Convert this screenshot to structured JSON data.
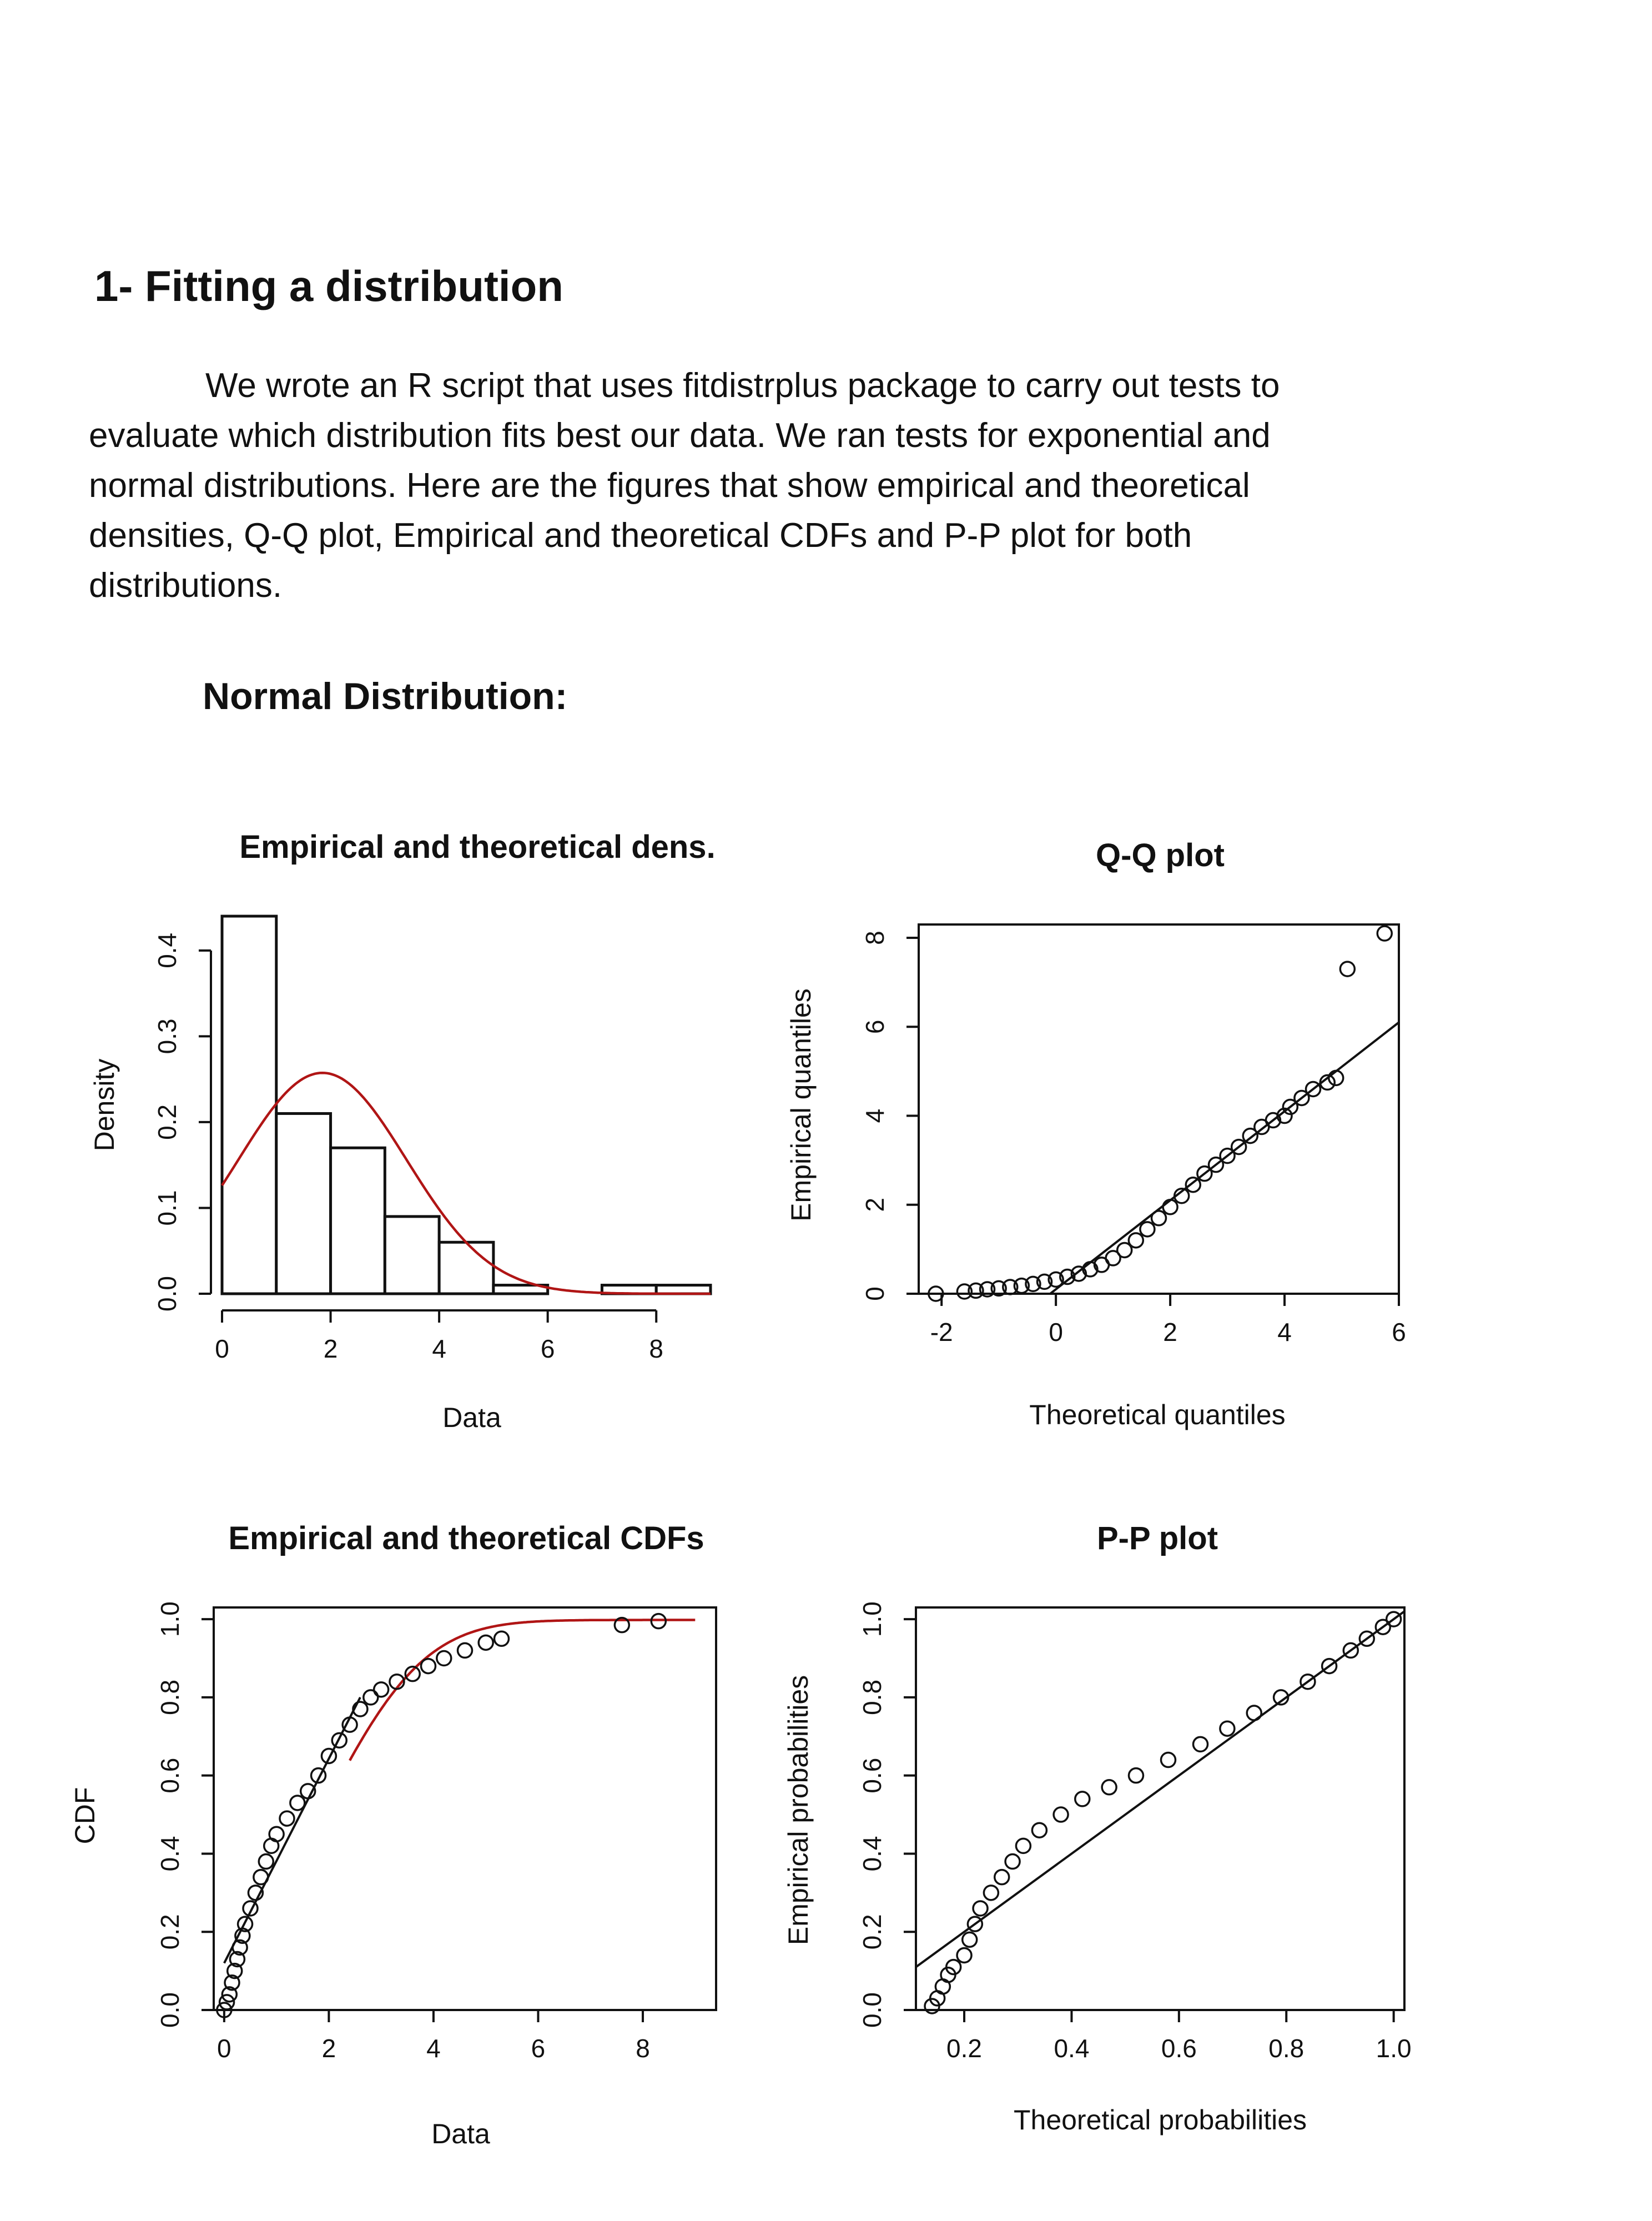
{
  "document": {
    "heading": "1- Fitting a distribution",
    "paragraph": "We wrote an R script that uses fitdistrplus package to carry out tests to evaluate which distribution fits best our data. We ran tests for exponential and normal distributions. Here are the figures that show empirical and theoretical densities, Q-Q plot, Empirical and theoretical CDFs and P-P plot for both distributions.",
    "subheading": "Normal Distribution:"
  },
  "colors": {
    "curve": "#b01515",
    "ink": "#111111"
  },
  "chart_data": [
    {
      "type": "bar",
      "title": "Empirical and theoretical dens.",
      "xlabel": "Data",
      "ylabel": "Density",
      "xlim": [
        0,
        9
      ],
      "ylim": [
        0,
        0.44
      ],
      "xticks": [
        "0",
        "2",
        "4",
        "6",
        "8"
      ],
      "yticks": [
        "0.0",
        "0.1",
        "0.2",
        "0.3",
        "0.4"
      ],
      "bins": [
        {
          "x0": 0,
          "x1": 1,
          "value": 0.44
        },
        {
          "x0": 1,
          "x1": 2,
          "value": 0.21
        },
        {
          "x0": 2,
          "x1": 3,
          "value": 0.17
        },
        {
          "x0": 3,
          "x1": 4,
          "value": 0.09
        },
        {
          "x0": 4,
          "x1": 5,
          "value": 0.06
        },
        {
          "x0": 5,
          "x1": 6,
          "value": 0.01
        },
        {
          "x0": 6,
          "x1": 7,
          "value": 0.0
        },
        {
          "x0": 7,
          "x1": 8,
          "value": 0.01
        },
        {
          "x0": 8,
          "x1": 9,
          "value": 0.01
        }
      ],
      "curve": {
        "mean": 1.85,
        "sd": 1.55
      }
    },
    {
      "type": "scatter",
      "title": "Q-Q plot",
      "xlabel": "Theoretical quantiles",
      "ylabel": "Empirical quantiles",
      "xlim": [
        -2.4,
        6.0
      ],
      "ylim": [
        0,
        8.3
      ],
      "xticks": [
        "-2",
        "0",
        "2",
        "4",
        "6"
      ],
      "yticks": [
        "0",
        "2",
        "4",
        "6",
        "8"
      ],
      "reference_line": [
        [
          -0.1,
          0
        ],
        [
          6.0,
          6.1
        ]
      ],
      "points": [
        [
          -2.1,
          0.0
        ],
        [
          -1.6,
          0.05
        ],
        [
          -1.4,
          0.07
        ],
        [
          -1.2,
          0.1
        ],
        [
          -1.0,
          0.12
        ],
        [
          -0.8,
          0.15
        ],
        [
          -0.6,
          0.18
        ],
        [
          -0.4,
          0.22
        ],
        [
          -0.2,
          0.27
        ],
        [
          0.0,
          0.32
        ],
        [
          0.2,
          0.38
        ],
        [
          0.4,
          0.45
        ],
        [
          0.6,
          0.55
        ],
        [
          0.8,
          0.65
        ],
        [
          1.0,
          0.8
        ],
        [
          1.2,
          0.98
        ],
        [
          1.4,
          1.2
        ],
        [
          1.6,
          1.45
        ],
        [
          1.8,
          1.7
        ],
        [
          2.0,
          1.95
        ],
        [
          2.2,
          2.2
        ],
        [
          2.4,
          2.45
        ],
        [
          2.6,
          2.7
        ],
        [
          2.8,
          2.9
        ],
        [
          3.0,
          3.1
        ],
        [
          3.2,
          3.3
        ],
        [
          3.4,
          3.55
        ],
        [
          3.6,
          3.75
        ],
        [
          3.8,
          3.9
        ],
        [
          4.0,
          4.0
        ],
        [
          4.1,
          4.2
        ],
        [
          4.3,
          4.4
        ],
        [
          4.5,
          4.6
        ],
        [
          4.75,
          4.75
        ],
        [
          4.9,
          4.85
        ],
        [
          5.1,
          7.3
        ],
        [
          5.75,
          8.1
        ]
      ]
    },
    {
      "type": "scatter",
      "title": "Empirical and theoretical CDFs",
      "xlabel": "Data",
      "ylabel": "CDF",
      "xlim": [
        -0.2,
        9.4
      ],
      "ylim": [
        0,
        1.03
      ],
      "xticks": [
        "0",
        "2",
        "4",
        "6",
        "8"
      ],
      "yticks": [
        "0.0",
        "0.2",
        "0.4",
        "0.6",
        "0.8",
        "1.0"
      ],
      "reference_line": [
        [
          0,
          0.12
        ],
        [
          2.6,
          0.8
        ]
      ],
      "points": [
        [
          0.0,
          0.0
        ],
        [
          0.05,
          0.02
        ],
        [
          0.1,
          0.04
        ],
        [
          0.15,
          0.07
        ],
        [
          0.2,
          0.1
        ],
        [
          0.25,
          0.13
        ],
        [
          0.3,
          0.16
        ],
        [
          0.35,
          0.19
        ],
        [
          0.4,
          0.22
        ],
        [
          0.5,
          0.26
        ],
        [
          0.6,
          0.3
        ],
        [
          0.7,
          0.34
        ],
        [
          0.8,
          0.38
        ],
        [
          0.9,
          0.42
        ],
        [
          1.0,
          0.45
        ],
        [
          1.2,
          0.49
        ],
        [
          1.4,
          0.53
        ],
        [
          1.6,
          0.56
        ],
        [
          1.8,
          0.6
        ],
        [
          2.0,
          0.65
        ],
        [
          2.2,
          0.69
        ],
        [
          2.4,
          0.73
        ],
        [
          2.6,
          0.77
        ],
        [
          2.8,
          0.8
        ],
        [
          3.0,
          0.82
        ],
        [
          3.3,
          0.84
        ],
        [
          3.6,
          0.86
        ],
        [
          3.9,
          0.88
        ],
        [
          4.2,
          0.9
        ],
        [
          4.6,
          0.92
        ],
        [
          5.0,
          0.94
        ],
        [
          5.3,
          0.95
        ],
        [
          7.6,
          0.985
        ],
        [
          8.3,
          0.995
        ]
      ]
    },
    {
      "type": "scatter",
      "title": "P-P plot",
      "xlabel": "Theoretical probabilities",
      "ylabel": "Empirical probabilities",
      "xlim": [
        0.11,
        1.02
      ],
      "ylim": [
        0,
        1.03
      ],
      "xticks": [
        "0.2",
        "0.4",
        "0.6",
        "0.8",
        "1.0"
      ],
      "yticks": [
        "0.0",
        "0.2",
        "0.4",
        "0.6",
        "0.8",
        "1.0"
      ],
      "reference_line": [
        [
          0.11,
          0.11
        ],
        [
          1.02,
          1.02
        ]
      ],
      "points": [
        [
          0.14,
          0.01
        ],
        [
          0.15,
          0.03
        ],
        [
          0.16,
          0.06
        ],
        [
          0.17,
          0.09
        ],
        [
          0.18,
          0.11
        ],
        [
          0.2,
          0.14
        ],
        [
          0.21,
          0.18
        ],
        [
          0.22,
          0.22
        ],
        [
          0.23,
          0.26
        ],
        [
          0.25,
          0.3
        ],
        [
          0.27,
          0.34
        ],
        [
          0.29,
          0.38
        ],
        [
          0.31,
          0.42
        ],
        [
          0.34,
          0.46
        ],
        [
          0.38,
          0.5
        ],
        [
          0.42,
          0.54
        ],
        [
          0.47,
          0.57
        ],
        [
          0.52,
          0.6
        ],
        [
          0.58,
          0.64
        ],
        [
          0.64,
          0.68
        ],
        [
          0.69,
          0.72
        ],
        [
          0.74,
          0.76
        ],
        [
          0.79,
          0.8
        ],
        [
          0.84,
          0.84
        ],
        [
          0.88,
          0.88
        ],
        [
          0.92,
          0.92
        ],
        [
          0.95,
          0.95
        ],
        [
          0.98,
          0.98
        ],
        [
          1.0,
          1.0
        ]
      ]
    }
  ]
}
